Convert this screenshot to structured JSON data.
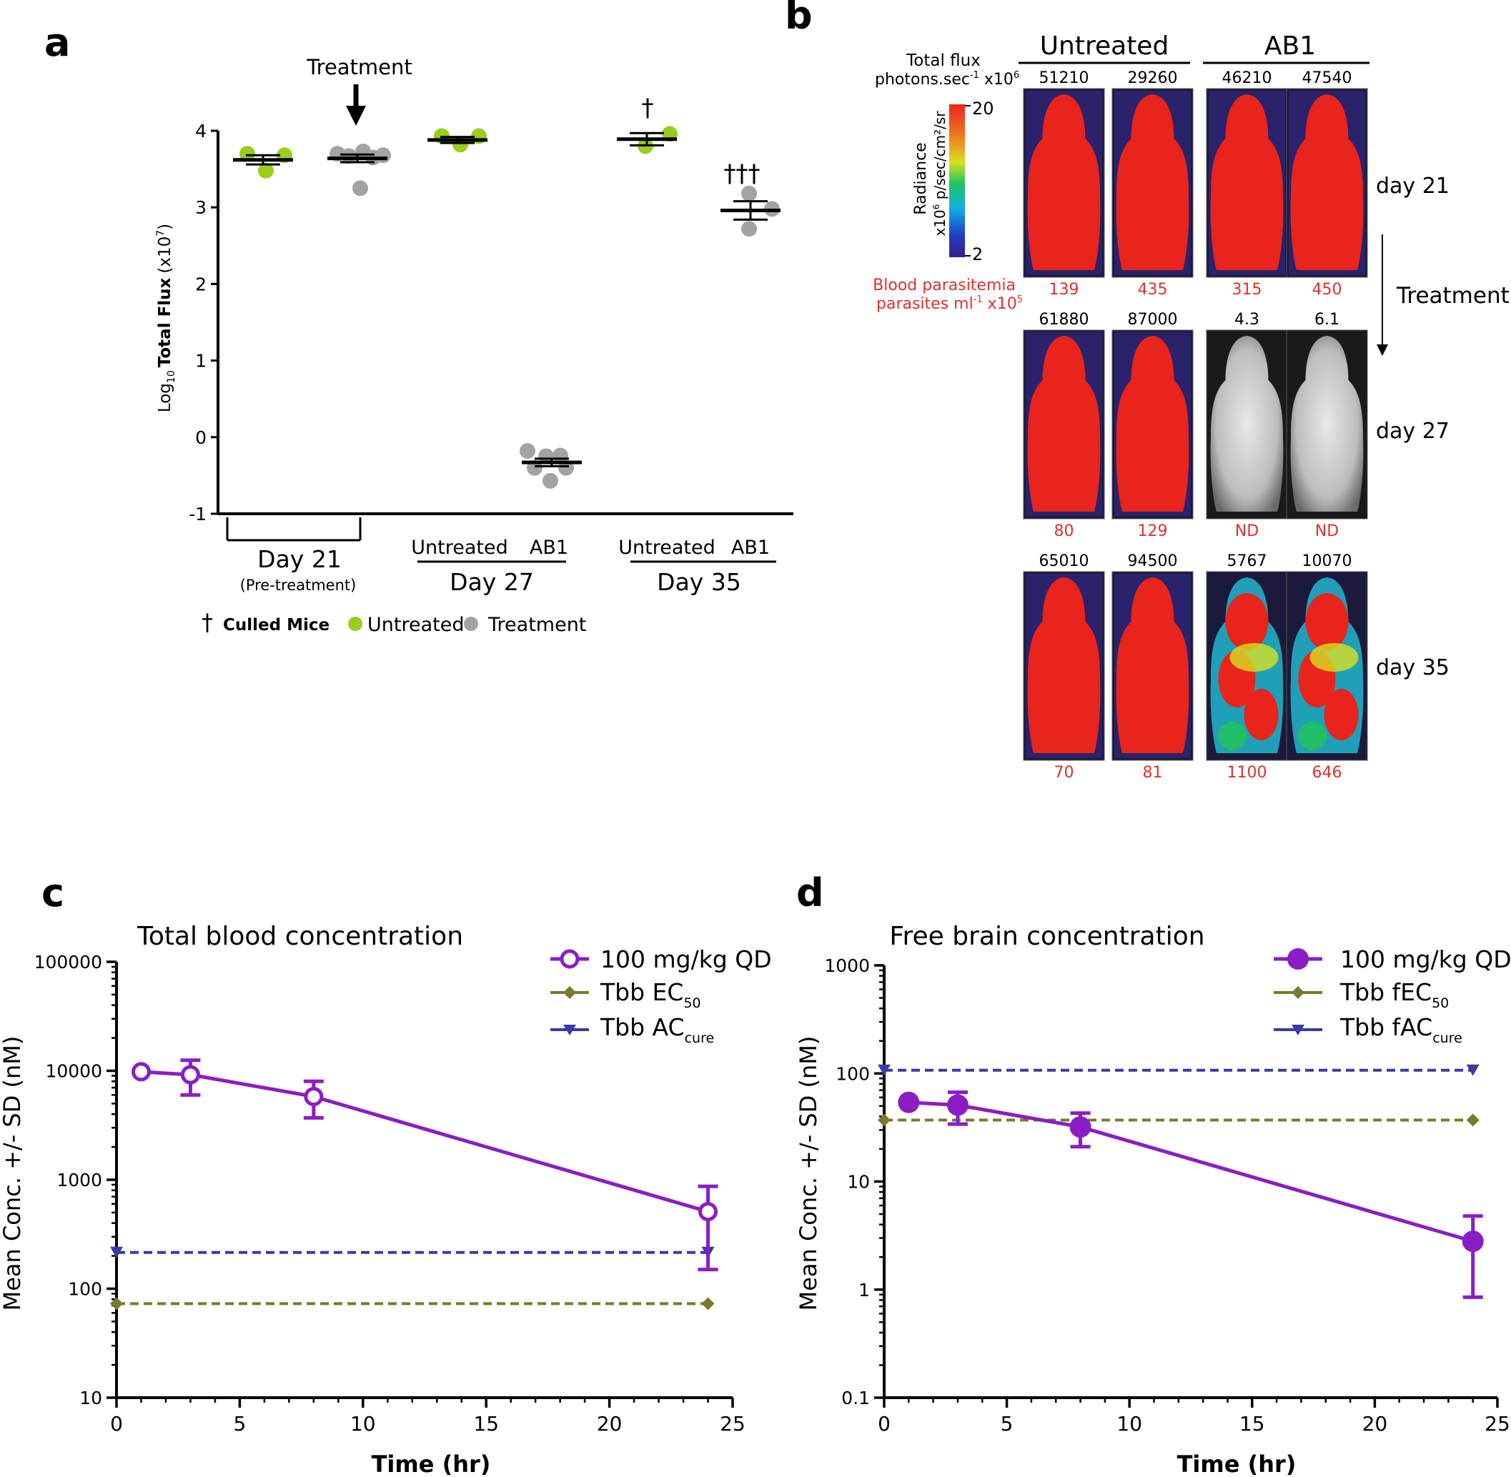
{
  "panel_labels": {
    "a": "a",
    "b": "b",
    "c": "c",
    "d": "d"
  },
  "colors": {
    "untreated_dot": "#9acd1e",
    "treatment_dot": "#a3a3a3",
    "purple": "#8a1ec4",
    "olive": "#7a7a2c",
    "blue": "#3a3aa8",
    "red_text": "#e0312e",
    "image_red": "#e8241c"
  },
  "panel_a": {
    "treatment_label": "Treatment",
    "dagger_one": "†",
    "dagger_three": "†††",
    "legend": {
      "culled_symbol": "†",
      "culled": "Culled Mice",
      "untreated": "Untreated",
      "treatment": "Treatment"
    },
    "groups": {
      "day21": "Day 21",
      "pretreatment": "(Pre-treatment)",
      "day27": "Day 27",
      "day35": "Day 35",
      "untreated_27": "Untreated",
      "ab1_27": "AB1",
      "untreated_35": "Untreated",
      "ab1_35": "AB1"
    }
  },
  "panel_b": {
    "total_flux_label": "Total flux",
    "photons_label": "photons.sec",
    "photons_sup": "-1",
    "photons_mult": " x10",
    "photons_exp": "6",
    "radiance_label": "Radiance",
    "radiance_unit_pre": "x10",
    "radiance_unit_exp": "6",
    "radiance_unit_post": " p/sec/cm²/sr",
    "scale_max": "20",
    "scale_min": "2",
    "blood_label": "Blood parasitemia",
    "parasites_label": "parasites ml",
    "parasites_sup": "-1",
    "parasites_mult": " x10",
    "parasites_exp": "5",
    "headers": {
      "untreated": "Untreated",
      "ab1": "AB1"
    },
    "days": {
      "d21": "day 21",
      "d27": "day 27",
      "d35": "day 35"
    },
    "treatment_label": "Treatment",
    "rows": [
      {
        "flux": [
          "51210",
          "29260",
          "46210",
          "47540"
        ],
        "parasitemia": [
          "139",
          "435",
          "315",
          "450"
        ]
      },
      {
        "flux": [
          "61880",
          "87000",
          "4.3",
          "6.1"
        ],
        "parasitemia": [
          "80",
          "129",
          "ND",
          "ND"
        ]
      },
      {
        "flux": [
          "65010",
          "94500",
          "5767",
          "10070"
        ],
        "parasitemia": [
          "70",
          "81",
          "1100",
          "646"
        ]
      }
    ]
  },
  "panel_c": {
    "title": "Total blood concentration",
    "legend": {
      "main": "100 mg/kg QD",
      "ec_pre": "Tbb EC",
      "ec_sub": "50",
      "ac_pre": "Tbb AC",
      "ac_sub": "cure"
    }
  },
  "panel_d": {
    "title": "Free brain concentration",
    "legend": {
      "main": "100 mg/kg QD",
      "ec_pre": "Tbb fEC",
      "ec_sub": "50",
      "ac_pre": "Tbb fAC",
      "ac_sub": "cure"
    }
  },
  "chart_data": [
    {
      "type": "scatter",
      "panel": "a",
      "ylabel": "Log 10 Total Flux (x10^7)",
      "ylabel_parts": {
        "log": "Log",
        "sub10": "10",
        "bold": "Total Flux",
        "rest": "(x10",
        "exp": "7",
        "close": ")"
      },
      "ylim": [
        -1,
        4
      ],
      "yticks": [
        "-1",
        "0",
        "1",
        "2",
        "3",
        "4"
      ],
      "groups": [
        {
          "name": "Day 21 Untreated",
          "color": "untreated",
          "values": [
            3.7,
            3.48,
            3.68
          ],
          "mean": 3.62,
          "sem": 0.06
        },
        {
          "name": "Day 21 Treatment",
          "color": "treatment",
          "values": [
            3.7,
            3.67,
            3.73,
            3.65,
            3.68,
            3.25
          ],
          "mean": 3.64,
          "sem": 0.05
        },
        {
          "name": "Day 27 Untreated",
          "color": "untreated",
          "values": [
            3.93,
            3.82,
            3.93
          ],
          "mean": 3.88,
          "sem": 0.04
        },
        {
          "name": "Day 27 AB1",
          "color": "treatment",
          "values": [
            -0.18,
            -0.25,
            -0.24,
            -0.4,
            -0.4,
            -0.57
          ],
          "mean": -0.33,
          "sem": 0.05
        },
        {
          "name": "Day 35 Untreated",
          "color": "untreated",
          "values": [
            3.8,
            3.96
          ],
          "mean": 3.89,
          "sem": 0.08
        },
        {
          "name": "Day 35 AB1",
          "color": "treatment",
          "values": [
            3.18,
            2.98,
            2.72
          ],
          "mean": 2.96,
          "sem": 0.12
        }
      ]
    },
    {
      "type": "line",
      "panel": "c",
      "title": "Total blood concentration",
      "xlabel": "Time (hr)",
      "ylabel": "Mean Conc. +/- SD (nM)",
      "xlim": [
        0,
        25
      ],
      "ylim": [
        10,
        100000
      ],
      "yscale": "log",
      "xticks": [
        "0",
        "5",
        "10",
        "15",
        "20",
        "25"
      ],
      "yticks": [
        "10",
        "100",
        "1000",
        "10000",
        "100000"
      ],
      "series": [
        {
          "name": "100 mg/kg QD",
          "x": [
            1,
            3,
            8,
            24
          ],
          "y": [
            9800,
            9200,
            5800,
            510
          ],
          "err_low": [
            9800,
            6000,
            3700,
            150
          ],
          "err_high": [
            9800,
            12500,
            8000,
            870
          ]
        },
        {
          "name": "Tbb EC50",
          "x": [
            0,
            24
          ],
          "y": [
            73,
            73
          ]
        },
        {
          "name": "Tbb ACcure",
          "x": [
            0,
            24
          ],
          "y": [
            215,
            215
          ]
        }
      ]
    },
    {
      "type": "line",
      "panel": "d",
      "title": "Free brain concentration",
      "xlabel": "Time (hr)",
      "ylabel": "Mean Conc. +/- SD (nM)",
      "xlim": [
        0,
        25
      ],
      "ylim": [
        0.1,
        1000
      ],
      "yscale": "log",
      "xticks": [
        "0",
        "5",
        "10",
        "15",
        "20",
        "25"
      ],
      "yticks": [
        "0.1",
        "1",
        "10",
        "100",
        "1000"
      ],
      "series": [
        {
          "name": "100 mg/kg QD",
          "x": [
            1,
            3,
            8,
            24
          ],
          "y": [
            54,
            51,
            32,
            2.8
          ],
          "err_low": [
            54,
            34,
            21,
            0.85
          ],
          "err_high": [
            54,
            67,
            43,
            4.8
          ]
        },
        {
          "name": "Tbb fEC50",
          "x": [
            0,
            24
          ],
          "y": [
            37,
            37
          ]
        },
        {
          "name": "Tbb fACcure",
          "x": [
            0,
            24
          ],
          "y": [
            107,
            107
          ]
        }
      ]
    }
  ]
}
